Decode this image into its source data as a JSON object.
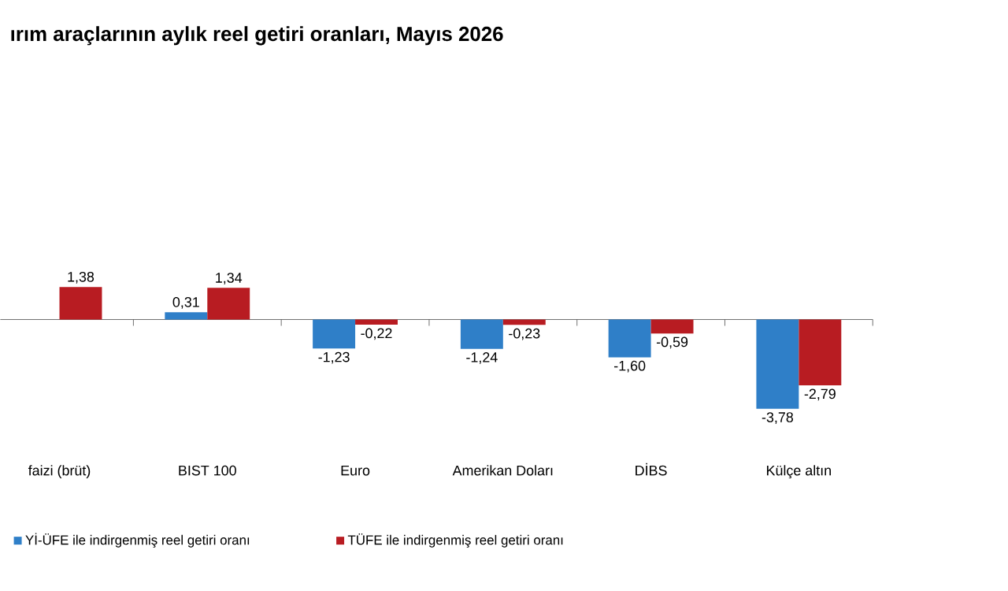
{
  "chart_data": {
    "type": "bar",
    "title": "ırım araçlarının aylık reel getiri oranları, Mayıs 2026",
    "categories": [
      "faizi (brüt)",
      "BIST 100",
      "Euro",
      "Amerikan Doları",
      "DİBS",
      "Külçe altın"
    ],
    "series": [
      {
        "name": "Yİ-ÜFE ile indirgenmiş reel getiri oranı",
        "color": "#2f7fc8",
        "values": [
          null,
          0.31,
          -1.23,
          -1.24,
          -1.6,
          -3.78
        ],
        "value_labels": [
          null,
          "0,31",
          "-1,23",
          "-1,24",
          "-1,60",
          "-3,78"
        ]
      },
      {
        "name": "TÜFE ile indirgenmiş reel getiri oranı",
        "color": "#b81c22",
        "values": [
          1.38,
          1.34,
          -0.22,
          -0.23,
          -0.59,
          -2.79
        ],
        "value_labels": [
          "1,38",
          "1,34",
          "-0,22",
          "-0,23",
          "-0,59",
          "-2,79"
        ]
      }
    ],
    "legend": "bottom"
  }
}
